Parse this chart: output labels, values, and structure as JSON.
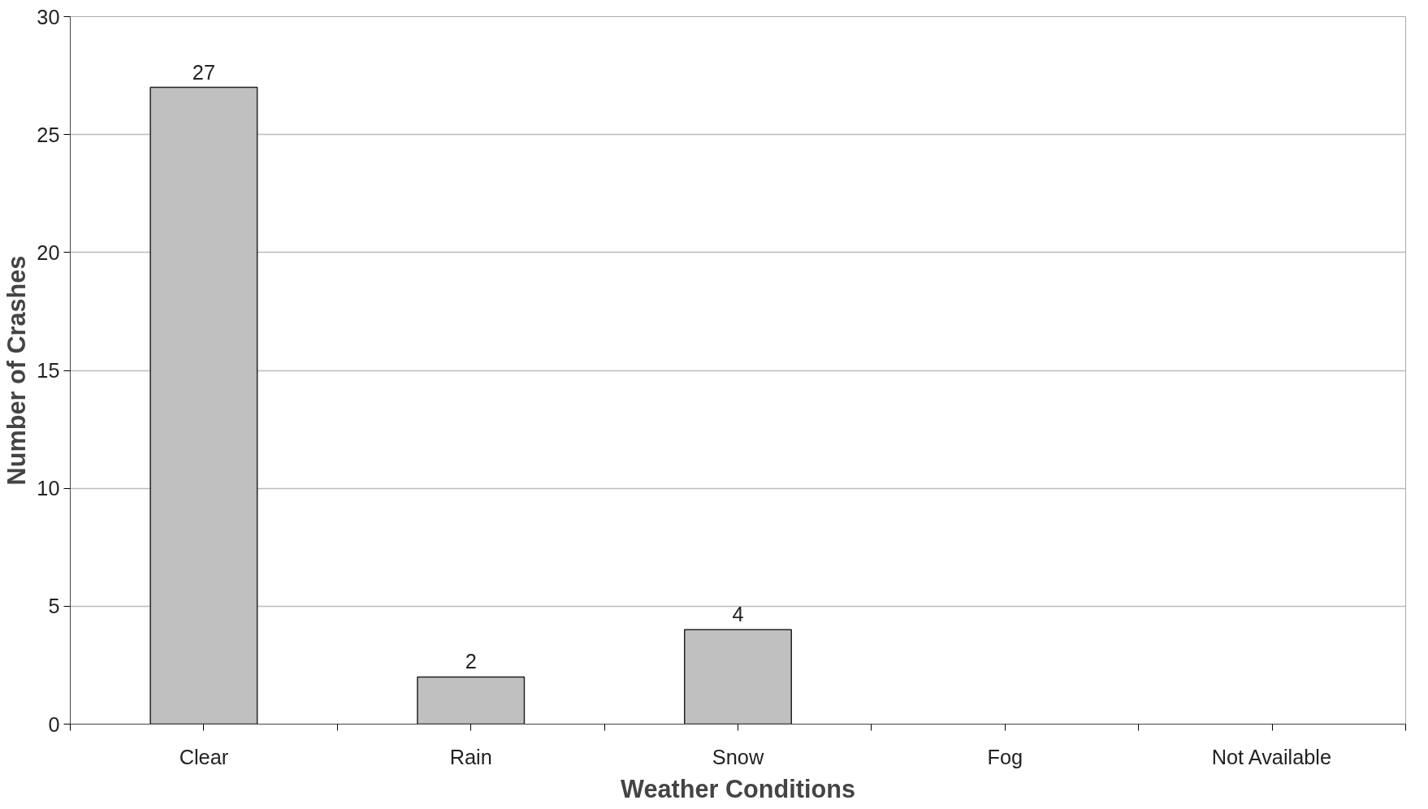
{
  "chart_data": {
    "type": "bar",
    "xlabel": "Weather Conditions",
    "ylabel": "Number of Crashes",
    "categories": [
      "Clear",
      "Rain",
      "Snow",
      "Fog",
      "Not Available"
    ],
    "values": [
      27,
      2,
      4,
      0,
      0
    ],
    "value_labels": [
      "27",
      "2",
      "4",
      null,
      null
    ],
    "color": "#c0c0c0",
    "ylim": [
      0,
      30
    ],
    "yticks": [
      0,
      5,
      10,
      15,
      20,
      25,
      30
    ],
    "grid": "y"
  }
}
